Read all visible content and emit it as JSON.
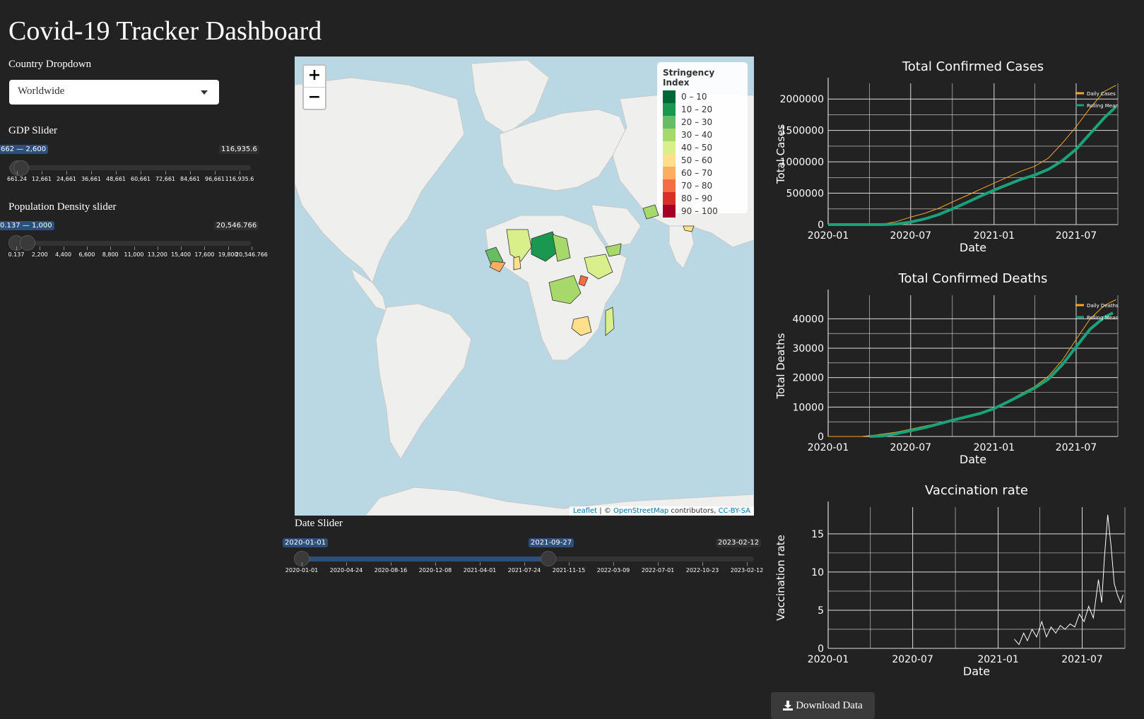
{
  "page": {
    "title": "Covid-19 Tracker Dashboard"
  },
  "country": {
    "label": "Country Dropdown",
    "value": "Worldwide"
  },
  "gdp": {
    "label": "GDP Slider",
    "range_label": "662 — 2,600",
    "max_label": "116,935.6",
    "ticks": [
      "661.24",
      "12,661",
      "24,661",
      "36,661",
      "48,661",
      "60,661",
      "72,661",
      "84,661",
      "96,661",
      "116,935.6"
    ]
  },
  "density": {
    "label": "Population Density slider",
    "range_label": "0.137 — 1,000",
    "max_label": "20,546.766",
    "ticks": [
      "0.137",
      "2,200",
      "4,400",
      "6,600",
      "8,800",
      "11,000",
      "13,200",
      "15,400",
      "17,600",
      "19,800",
      "20,546.766"
    ]
  },
  "map": {
    "zoom_in": "+",
    "zoom_out": "−",
    "legend_title": "Stringency Index",
    "legend": [
      {
        "label": "0 – 10",
        "color": "#006837"
      },
      {
        "label": "10 – 20",
        "color": "#1a9850"
      },
      {
        "label": "20 – 30",
        "color": "#66bd63"
      },
      {
        "label": "30 – 40",
        "color": "#a6d96a"
      },
      {
        "label": "40 – 50",
        "color": "#d9ef8b"
      },
      {
        "label": "50 – 60",
        "color": "#fee08b"
      },
      {
        "label": "60 – 70",
        "color": "#fdae61"
      },
      {
        "label": "70 – 80",
        "color": "#f46d43"
      },
      {
        "label": "80 – 90",
        "color": "#d73027"
      },
      {
        "label": "90 – 100",
        "color": "#a50026"
      }
    ],
    "attribution_leaflet": "Leaflet",
    "attribution_sep": " | © ",
    "attribution_osm": "OpenStreetMap",
    "attribution_mid": " contributors, ",
    "attribution_cc": "CC-BY-SA"
  },
  "date_slider": {
    "label": "Date Slider",
    "from": "2020-01-01",
    "to": "2021-09-27",
    "max": "2023-02-12",
    "ticks": [
      "2020-01-01",
      "2020-04-24",
      "2020-08-16",
      "2020-12-08",
      "2021-04-01",
      "2021-07-24",
      "2021-11-15",
      "2022-03-09",
      "2022-07-01",
      "2022-10-23",
      "2023-02-12"
    ]
  },
  "download": {
    "label": "Download Data"
  },
  "chart_data": [
    {
      "type": "line",
      "title": "Total Confirmed Cases",
      "xlabel": "Date",
      "ylabel": "Total Cases",
      "x_ticks": [
        "2020-01",
        "2020-07",
        "2021-01",
        "2021-07"
      ],
      "y_ticks": [
        0,
        500000,
        1000000,
        1500000,
        2000000
      ],
      "ylim": [
        0,
        2250000
      ],
      "x_range": [
        "2020-01-01",
        "2021-10-01"
      ],
      "series": [
        {
          "name": "Daily Cases",
          "color": "#f5a623",
          "x": [
            "2020-01-01",
            "2020-04-01",
            "2020-05-01",
            "2020-06-01",
            "2020-07-01",
            "2020-08-01",
            "2020-09-01",
            "2020-10-01",
            "2020-11-01",
            "2020-12-01",
            "2021-01-01",
            "2021-02-01",
            "2021-03-01",
            "2021-04-01",
            "2021-05-01",
            "2021-06-01",
            "2021-07-01",
            "2021-08-01",
            "2021-09-01",
            "2021-09-27"
          ],
          "y": [
            0,
            0,
            10000,
            50000,
            120000,
            180000,
            260000,
            360000,
            460000,
            560000,
            660000,
            760000,
            850000,
            930000,
            1060000,
            1300000,
            1560000,
            1860000,
            2120000,
            2220000
          ]
        },
        {
          "name": "Rolling Mean",
          "color": "#1aa37a",
          "x": [
            "2020-01-01",
            "2020-04-01",
            "2020-05-01",
            "2020-06-01",
            "2020-07-01",
            "2020-08-01",
            "2020-09-01",
            "2020-10-01",
            "2020-11-01",
            "2020-12-01",
            "2021-01-01",
            "2021-02-01",
            "2021-03-01",
            "2021-04-01",
            "2021-05-01",
            "2021-06-01",
            "2021-07-01",
            "2021-08-01",
            "2021-09-01",
            "2021-09-27"
          ],
          "y": [
            0,
            0,
            0,
            10000,
            40000,
            90000,
            160000,
            250000,
            350000,
            450000,
            550000,
            640000,
            720000,
            790000,
            880000,
            1020000,
            1200000,
            1450000,
            1700000,
            1880000
          ]
        }
      ]
    },
    {
      "type": "line",
      "title": "Total Confirmed Deaths",
      "xlabel": "Date",
      "ylabel": "Total Deaths",
      "x_ticks": [
        "2020-01",
        "2020-07",
        "2021-01",
        "2021-07"
      ],
      "y_ticks": [
        0,
        10000,
        20000,
        30000,
        40000
      ],
      "ylim": [
        0,
        48000
      ],
      "x_range": [
        "2020-01-01",
        "2021-10-01"
      ],
      "series": [
        {
          "name": "Daily Deaths",
          "color": "#f5a623",
          "x": [
            "2020-01-01",
            "2020-03-15",
            "2020-04-15",
            "2020-06-01",
            "2020-08-01",
            "2020-10-01",
            "2020-12-01",
            "2021-01-01",
            "2021-02-01",
            "2021-03-01",
            "2021-04-01",
            "2021-05-01",
            "2021-06-01",
            "2021-07-01",
            "2021-08-01",
            "2021-09-01",
            "2021-09-27"
          ],
          "y": [
            0,
            0,
            500,
            1500,
            3500,
            5500,
            7500,
            9500,
            12000,
            14500,
            17000,
            20500,
            26000,
            33000,
            40000,
            44500,
            46500
          ]
        },
        {
          "name": "Rolling Mean",
          "color": "#1aa37a",
          "x": [
            "2020-04-01",
            "2020-05-01",
            "2020-06-01",
            "2020-08-01",
            "2020-10-01",
            "2020-12-01",
            "2021-01-01",
            "2021-02-01",
            "2021-03-01",
            "2021-04-01",
            "2021-05-01",
            "2021-06-01",
            "2021-07-01",
            "2021-08-01",
            "2021-09-01",
            "2021-09-20"
          ],
          "y": [
            0,
            200,
            1000,
            3000,
            5500,
            7800,
            9500,
            11800,
            14000,
            16500,
            19500,
            24500,
            30500,
            36500,
            40500,
            42000
          ]
        }
      ]
    },
    {
      "type": "line",
      "title": "Vaccination rate",
      "xlabel": "Date",
      "ylabel": "Vaccination rate",
      "x_ticks": [
        "2020-01",
        "2020-07",
        "2021-01",
        "2021-07"
      ],
      "y_ticks": [
        0,
        5,
        10,
        15
      ],
      "ylim": [
        0,
        18.5
      ],
      "x_range": [
        "2020-01-01",
        "2021-10-01"
      ],
      "series": [
        {
          "name": "Vaccination rate",
          "color": "#ffffff",
          "x": [
            "2021-02-05",
            "2021-02-15",
            "2021-02-25",
            "2021-03-05",
            "2021-03-15",
            "2021-03-25",
            "2021-04-05",
            "2021-04-15",
            "2021-04-25",
            "2021-05-05",
            "2021-05-15",
            "2021-05-25",
            "2021-06-05",
            "2021-06-15",
            "2021-06-25",
            "2021-07-05",
            "2021-07-15",
            "2021-07-25",
            "2021-08-05",
            "2021-08-12",
            "2021-08-18",
            "2021-08-25",
            "2021-09-01",
            "2021-09-08",
            "2021-09-15",
            "2021-09-22",
            "2021-09-27"
          ],
          "y": [
            1.2,
            0.5,
            2.0,
            1.0,
            2.5,
            1.5,
            3.5,
            1.5,
            2.8,
            2.0,
            3.0,
            2.5,
            3.2,
            2.8,
            4.5,
            3.5,
            5.5,
            4.0,
            9.0,
            6.0,
            12.0,
            17.5,
            13.5,
            8.5,
            7.0,
            6.0,
            7.0
          ]
        }
      ]
    }
  ]
}
